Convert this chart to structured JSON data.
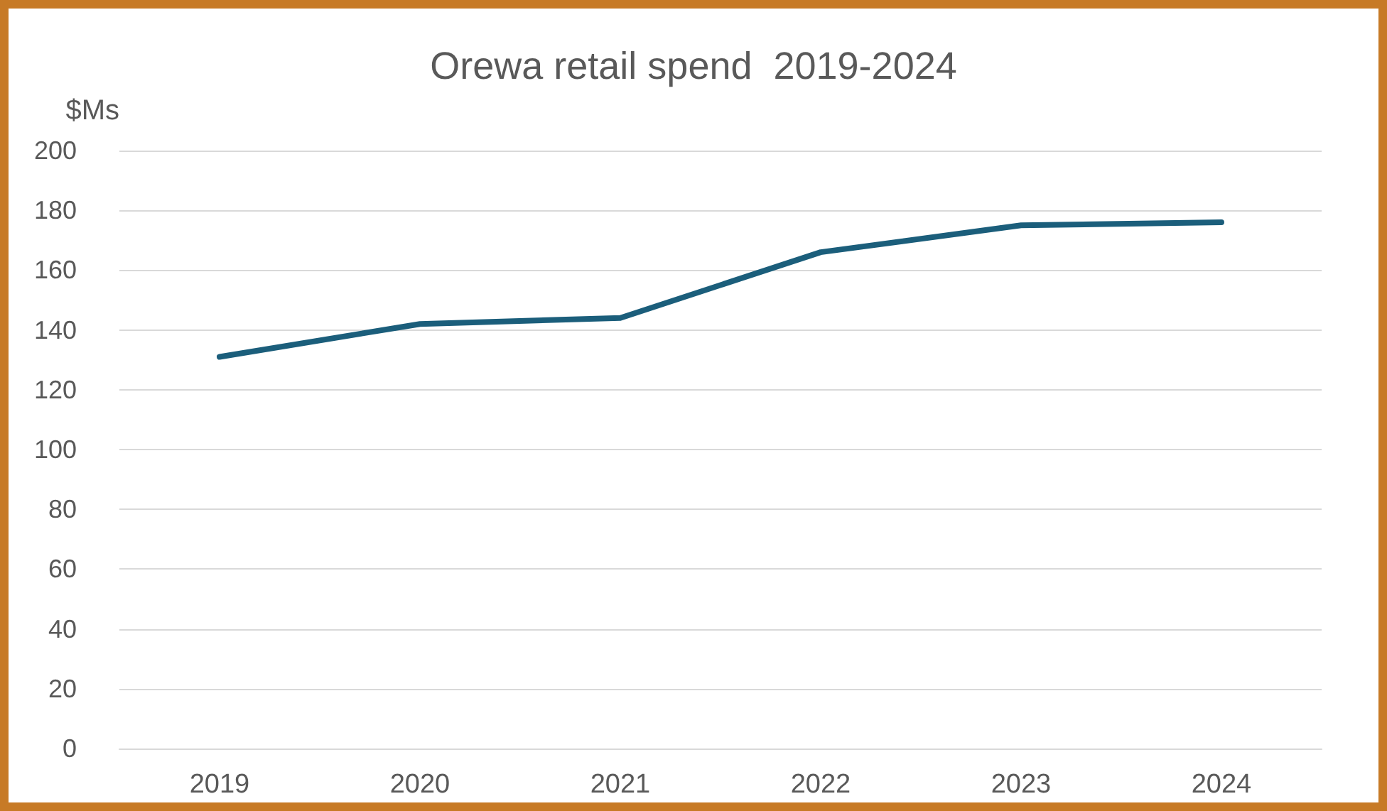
{
  "chart_data": {
    "type": "line",
    "title": "Orewa retail spend  2019-2024",
    "ylabel": "$Ms",
    "categories": [
      "2019",
      "2020",
      "2021",
      "2022",
      "2023",
      "2024"
    ],
    "series": [
      {
        "color": "#1b5e7b",
        "values": [
          131,
          142,
          144,
          166,
          175,
          176
        ]
      }
    ],
    "ylim": [
      0,
      200
    ],
    "yticks": [
      0,
      20,
      40,
      60,
      80,
      100,
      120,
      140,
      160,
      180,
      200
    ],
    "grid": "y",
    "marker": "none",
    "line_style": "solid"
  }
}
